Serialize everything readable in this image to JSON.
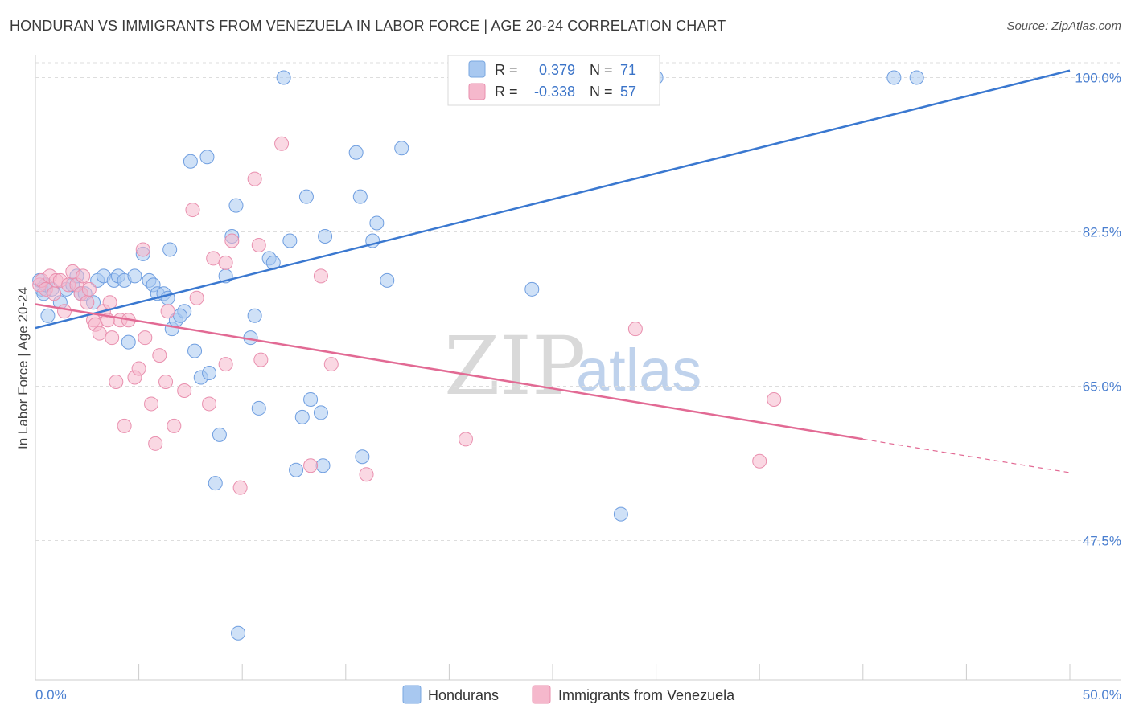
{
  "title": "HONDURAN VS IMMIGRANTS FROM VENEZUELA IN LABOR FORCE | AGE 20-24 CORRELATION CHART",
  "source": "Source: ZipAtlas.com",
  "watermark": {
    "zip": "ZIP",
    "atlas": "atlas"
  },
  "legend": {
    "r_label": "R =",
    "n_label": "N =",
    "rows": [
      {
        "r": "0.379",
        "n": "71",
        "color": "#a8c8f0"
      },
      {
        "r": "-0.338",
        "n": "57",
        "color": "#f5b8cc"
      }
    ]
  },
  "bottom_legend": [
    "Hondurans",
    "Immigrants from Venezuela"
  ],
  "chart_data": {
    "type": "scatter",
    "title": "HONDURAN VS IMMIGRANTS FROM VENEZUELA IN LABOR FORCE | AGE 20-24 CORRELATION CHART",
    "xlabel": "",
    "ylabel": "In Labor Force | Age 20-24",
    "xlim": [
      0,
      50
    ],
    "ylim": [
      30,
      103
    ],
    "x_tick_labels": [
      "0.0%",
      "50.0%"
    ],
    "y_ticks": [
      {
        "value": 100,
        "label": "100.0%"
      },
      {
        "value": 82.5,
        "label": "82.5%"
      },
      {
        "value": 65,
        "label": "65.0%"
      },
      {
        "value": 47.5,
        "label": "47.5%"
      }
    ],
    "grid": "horizontal dashed",
    "colors": {
      "hondurans": "#3a78d0",
      "venezuela": "#e26a94",
      "hondurans_fill": "#a8c8f0",
      "venezuela_fill": "#f5b8cc"
    },
    "series": [
      {
        "name": "Hondurans",
        "r": 0.379,
        "n": 71,
        "trend": {
          "x": [
            0,
            50
          ],
          "y": [
            71.6,
            100.8
          ]
        },
        "points": [
          [
            0.2,
            77.0
          ],
          [
            0.3,
            76.0
          ],
          [
            0.4,
            75.5
          ],
          [
            0.5,
            76.5
          ],
          [
            0.6,
            73.0
          ],
          [
            0.8,
            76.0
          ],
          [
            1.2,
            74.5
          ],
          [
            1.5,
            76.0
          ],
          [
            1.8,
            76.5
          ],
          [
            2.0,
            77.5
          ],
          [
            2.2,
            75.5
          ],
          [
            2.4,
            75.5
          ],
          [
            2.8,
            74.5
          ],
          [
            3.0,
            77.0
          ],
          [
            3.3,
            77.5
          ],
          [
            3.8,
            77.0
          ],
          [
            4.0,
            77.5
          ],
          [
            4.3,
            77.0
          ],
          [
            4.5,
            70.0
          ],
          [
            4.8,
            77.5
          ],
          [
            5.2,
            80.0
          ],
          [
            5.5,
            77.0
          ],
          [
            5.7,
            76.5
          ],
          [
            5.9,
            75.5
          ],
          [
            6.2,
            75.5
          ],
          [
            6.4,
            75.0
          ],
          [
            6.5,
            80.5
          ],
          [
            6.6,
            71.5
          ],
          [
            6.8,
            72.5
          ],
          [
            7.2,
            73.5
          ],
          [
            7.0,
            73.0
          ],
          [
            7.5,
            90.5
          ],
          [
            7.7,
            69.0
          ],
          [
            8.0,
            66.0
          ],
          [
            8.3,
            91.0
          ],
          [
            8.4,
            66.5
          ],
          [
            8.7,
            54.0
          ],
          [
            8.9,
            59.5
          ],
          [
            9.2,
            77.5
          ],
          [
            9.5,
            82.0
          ],
          [
            9.7,
            85.5
          ],
          [
            9.8,
            37.0
          ],
          [
            10.4,
            70.5
          ],
          [
            10.6,
            73.0
          ],
          [
            10.8,
            62.5
          ],
          [
            11.3,
            79.5
          ],
          [
            11.5,
            79.0
          ],
          [
            12.0,
            100.0
          ],
          [
            12.3,
            81.5
          ],
          [
            12.6,
            55.5
          ],
          [
            12.9,
            61.5
          ],
          [
            13.1,
            86.5
          ],
          [
            13.3,
            63.5
          ],
          [
            13.8,
            62.0
          ],
          [
            13.9,
            56.0
          ],
          [
            14.0,
            82.0
          ],
          [
            15.5,
            91.5
          ],
          [
            15.7,
            86.5
          ],
          [
            15.8,
            57.0
          ],
          [
            16.3,
            81.5
          ],
          [
            16.5,
            83.5
          ],
          [
            17.0,
            77.0
          ],
          [
            17.7,
            92.0
          ],
          [
            20.3,
            100.0
          ],
          [
            23.0,
            100.0
          ],
          [
            24.0,
            76.0
          ],
          [
            24.8,
            100.0
          ],
          [
            28.3,
            50.5
          ],
          [
            30.0,
            100.0
          ],
          [
            41.5,
            100.0
          ],
          [
            42.6,
            100.0
          ]
        ]
      },
      {
        "name": "Immigrants from Venezuela",
        "r": -0.338,
        "n": 57,
        "trend": {
          "x": [
            0,
            40
          ],
          "y": [
            74.3,
            59.0
          ]
        },
        "trend_dashed": {
          "x": [
            40,
            50
          ],
          "y": [
            59.0,
            55.2
          ]
        },
        "points": [
          [
            0.2,
            76.5
          ],
          [
            0.3,
            77.0
          ],
          [
            0.5,
            76.0
          ],
          [
            0.7,
            77.5
          ],
          [
            0.9,
            75.5
          ],
          [
            1.0,
            77.0
          ],
          [
            1.2,
            77.0
          ],
          [
            1.4,
            73.5
          ],
          [
            1.6,
            76.5
          ],
          [
            1.8,
            78.0
          ],
          [
            2.0,
            76.5
          ],
          [
            2.2,
            75.5
          ],
          [
            2.3,
            77.5
          ],
          [
            2.5,
            74.5
          ],
          [
            2.6,
            76.0
          ],
          [
            2.8,
            72.5
          ],
          [
            2.9,
            72.0
          ],
          [
            3.1,
            71.0
          ],
          [
            3.3,
            73.5
          ],
          [
            3.5,
            72.5
          ],
          [
            3.6,
            74.5
          ],
          [
            3.7,
            70.5
          ],
          [
            3.9,
            65.5
          ],
          [
            4.1,
            72.5
          ],
          [
            4.3,
            60.5
          ],
          [
            4.5,
            72.5
          ],
          [
            4.8,
            66.0
          ],
          [
            5.0,
            67.0
          ],
          [
            5.2,
            80.5
          ],
          [
            5.3,
            70.5
          ],
          [
            5.6,
            63.0
          ],
          [
            5.8,
            58.5
          ],
          [
            6.0,
            68.5
          ],
          [
            6.3,
            65.5
          ],
          [
            6.4,
            73.5
          ],
          [
            6.7,
            60.5
          ],
          [
            7.2,
            64.5
          ],
          [
            7.6,
            85.0
          ],
          [
            7.8,
            75.0
          ],
          [
            8.4,
            63.0
          ],
          [
            8.6,
            79.5
          ],
          [
            9.2,
            79.0
          ],
          [
            9.2,
            67.5
          ],
          [
            9.5,
            81.5
          ],
          [
            9.9,
            53.5
          ],
          [
            10.8,
            81.0
          ],
          [
            10.6,
            88.5
          ],
          [
            10.9,
            68.0
          ],
          [
            11.9,
            92.5
          ],
          [
            13.3,
            56.0
          ],
          [
            13.8,
            77.5
          ],
          [
            14.3,
            67.5
          ],
          [
            16.0,
            55.0
          ],
          [
            20.8,
            59.0
          ],
          [
            29.0,
            71.5
          ],
          [
            35.0,
            56.5
          ],
          [
            35.7,
            63.5
          ]
        ]
      }
    ]
  }
}
